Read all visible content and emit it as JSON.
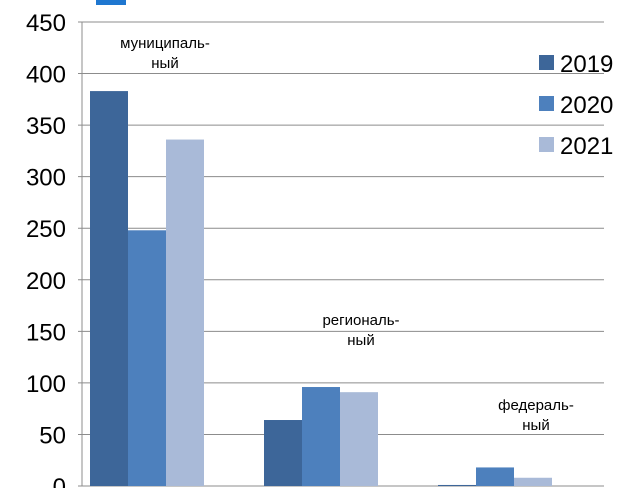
{
  "chart_data": {
    "type": "bar",
    "categories": [
      [
        "муниципаль-",
        "ный"
      ],
      [
        "региональ-",
        "ный"
      ],
      [
        "федераль-",
        "ный"
      ]
    ],
    "series": [
      {
        "name": "2019",
        "color": "#3d6699",
        "values": [
          383,
          64,
          1
        ]
      },
      {
        "name": "2020",
        "color": "#4d80bd",
        "values": [
          248,
          96,
          18
        ]
      },
      {
        "name": "2021",
        "color": "#a9bad8",
        "values": [
          336,
          91,
          8
        ]
      }
    ],
    "ylim": [
      0,
      450
    ],
    "yticks": [
      "0",
      "50",
      "100",
      "150",
      "200",
      "250",
      "300",
      "350",
      "400",
      "450"
    ],
    "grid": true,
    "legend_position": "right"
  }
}
